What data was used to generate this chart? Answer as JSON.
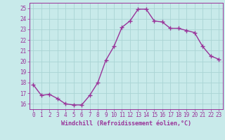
{
  "x": [
    0,
    1,
    2,
    3,
    4,
    5,
    6,
    7,
    8,
    9,
    10,
    11,
    12,
    13,
    14,
    15,
    16,
    17,
    18,
    19,
    20,
    21,
    22,
    23
  ],
  "y": [
    17.8,
    16.8,
    16.9,
    16.5,
    16.0,
    15.9,
    15.9,
    16.8,
    18.0,
    20.1,
    21.4,
    23.2,
    23.8,
    24.9,
    24.9,
    23.8,
    23.7,
    23.1,
    23.1,
    22.9,
    22.7,
    21.4,
    20.5,
    20.2
  ],
  "color": "#993399",
  "bg_color": "#c8eaea",
  "grid_color": "#aad4d4",
  "ylim": [
    15.5,
    25.5
  ],
  "xlim": [
    -0.5,
    23.5
  ],
  "yticks": [
    16,
    17,
    18,
    19,
    20,
    21,
    22,
    23,
    24,
    25
  ],
  "xticks": [
    0,
    1,
    2,
    3,
    4,
    5,
    6,
    7,
    8,
    9,
    10,
    11,
    12,
    13,
    14,
    15,
    16,
    17,
    18,
    19,
    20,
    21,
    22,
    23
  ],
  "xlabel": "Windchill (Refroidissement éolien,°C)",
  "marker": "+",
  "linewidth": 1.0,
  "markersize": 4,
  "tick_fontsize": 5.5,
  "xlabel_fontsize": 6.0
}
